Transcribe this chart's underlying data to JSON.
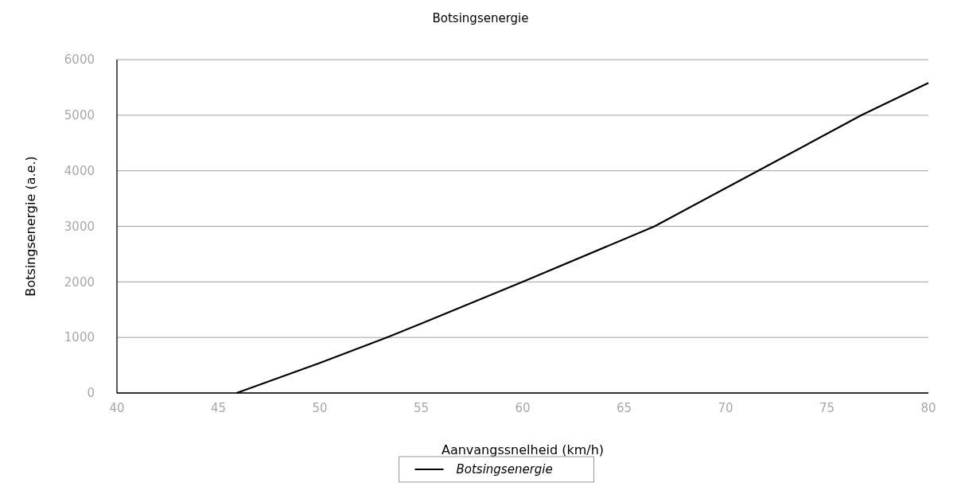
{
  "chart_data": {
    "type": "line",
    "title": "Botsingsenergie",
    "xlabel": "Aanvangssnelheid (km/h)",
    "ylabel": "Botsingsenergie (a.e.)",
    "xlim": [
      40,
      80
    ],
    "xticks": [
      40,
      45,
      50,
      55,
      60,
      65,
      70,
      75,
      80
    ],
    "ylim": [
      0,
      6000
    ],
    "yticks": [
      0,
      1000,
      2000,
      3000,
      4000,
      5000,
      6000
    ],
    "grid": "y",
    "legend": "bottom",
    "marker": "none",
    "line_style": "solid",
    "series": [
      {
        "name": "Botsingsenergie",
        "color": "#000000",
        "x": [
          45.9,
          50,
          53.3,
          55,
          60,
          66.5,
          71.6,
          76.7,
          80
        ],
        "values": [
          0,
          540,
          1000,
          1250,
          2000,
          3000,
          4000,
          5000,
          5580
        ]
      }
    ]
  }
}
